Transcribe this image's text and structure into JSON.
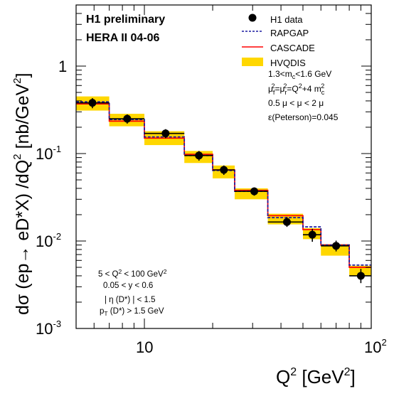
{
  "chart_data": {
    "type": "line",
    "x_scale": "log",
    "y_scale": "log",
    "xlim": [
      5,
      100
    ],
    "ylim": [
      0.001,
      5
    ],
    "xlabel": {
      "main": "Q",
      "sup": "2",
      "tail": " [GeV",
      "sup2": "2",
      "end": "]"
    },
    "ylabel": {
      "a": "dσ (ep→ eD*X) /dQ",
      "sup": "2",
      "b": " [nb/GeV",
      "sup2": "2",
      "c": "]"
    },
    "x_ticks": [
      {
        "value": 10,
        "label": "10"
      },
      {
        "value": 100,
        "label": "10",
        "sup": "2"
      }
    ],
    "y_ticks": [
      {
        "value": 1,
        "label": "1",
        "sup": ""
      },
      {
        "value": 0.1,
        "label": "10",
        "sup": "-1"
      },
      {
        "value": 0.01,
        "label": "10",
        "sup": "-2"
      },
      {
        "value": 0.001,
        "label": "10",
        "sup": "-3"
      }
    ],
    "title_lines": [
      "H1 preliminary",
      "HERA II 04-06"
    ],
    "bin_edges": [
      5,
      7,
      10,
      15,
      20,
      25,
      35,
      50,
      60,
      80,
      100
    ],
    "series": [
      {
        "name": "H1 data",
        "kind": "points",
        "color": "#000000",
        "x": [
          5.9,
          8.4,
          12.4,
          17.4,
          22.4,
          30.5,
          42.5,
          55,
          70,
          90
        ],
        "y": [
          0.38,
          0.25,
          0.17,
          0.095,
          0.065,
          0.037,
          0.0165,
          0.0118,
          0.0088,
          0.004
        ],
        "yerr_low": [
          0.33,
          0.22,
          0.15,
          0.083,
          0.057,
          0.033,
          0.0145,
          0.0098,
          0.0076,
          0.0033
        ],
        "yerr_high": [
          0.43,
          0.28,
          0.19,
          0.107,
          0.073,
          0.041,
          0.0188,
          0.0138,
          0.0101,
          0.0048
        ]
      },
      {
        "name": "RAPGAP",
        "kind": "histogram",
        "color": "#1a1aa0",
        "style": "dashed",
        "values": [
          0.39,
          0.245,
          0.155,
          0.095,
          0.064,
          0.037,
          0.0185,
          0.0145,
          0.009,
          0.0053
        ]
      },
      {
        "name": "CASCADE",
        "kind": "histogram",
        "color": "#ff0000",
        "style": "solid",
        "values": [
          0.37,
          0.235,
          0.15,
          0.098,
          0.065,
          0.038,
          0.0195,
          0.0135,
          0.009,
          0.005
        ]
      },
      {
        "name": "HVQDIS",
        "kind": "band",
        "color": "#ffd700",
        "low": [
          0.31,
          0.205,
          0.125,
          0.078,
          0.052,
          0.03,
          0.0155,
          0.0105,
          0.0068,
          0.004
        ],
        "high": [
          0.45,
          0.285,
          0.18,
          0.107,
          0.073,
          0.04,
          0.0205,
          0.014,
          0.0092,
          0.0052
        ]
      }
    ],
    "legend_labels": [
      "H1 data",
      "RAPGAP",
      "CASCADE",
      "HVQDIS"
    ],
    "legend_position": "top-right",
    "hvqdis_params": {
      "mass": [
        "1.3<m",
        "c",
        "<1.6 GeV"
      ],
      "scales": [
        "μ",
        "f",
        "2",
        "=μ",
        "r",
        "2",
        "=Q",
        "2",
        "+4 m",
        "c",
        "2"
      ],
      "mu_range": "0.5 μ < μ < 2 μ",
      "peterson": "ε(Peterson)=0.045"
    },
    "phase_space_cuts": {
      "q2": [
        "5 < Q",
        "2",
        " < 100 GeV",
        "2"
      ],
      "y": "0.05 < y < 0.6",
      "eta": "| η (D*) | < 1.5",
      "pt": [
        "p",
        "T",
        " (D*) > 1.5 GeV"
      ]
    }
  }
}
